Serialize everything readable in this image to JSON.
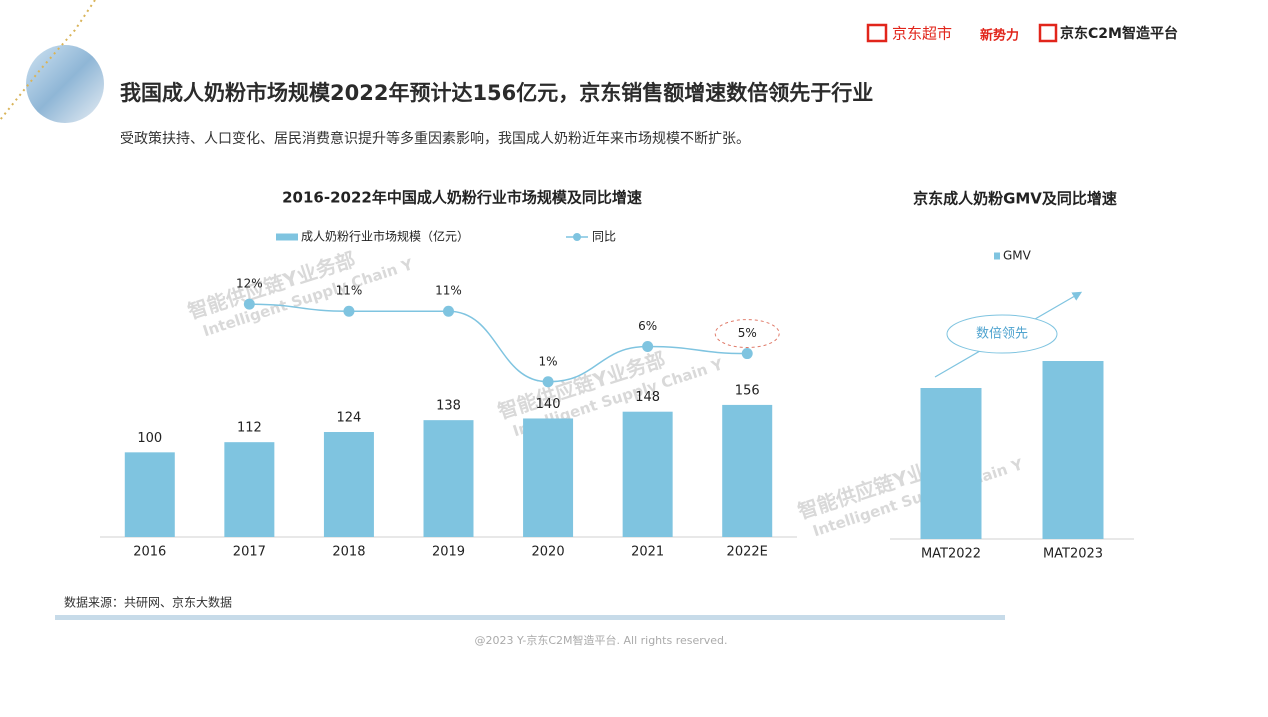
{
  "header": {
    "title": "我国成人奶粉市场规模2022年预计达156亿元，京东销售额增速数倍领先于行业",
    "subtitle": "受政策扶持、人口变化、居民消费意识提升等多重因素影响，我国成人奶粉近年来市场规模不断扩张。",
    "logos": [
      "京东超市",
      "新势力",
      "京东C2M智造平台"
    ]
  },
  "watermark": [
    "智能供应链Y业务部",
    "Intelligent Supply Chain Y"
  ],
  "chart_data": [
    {
      "type": "bar",
      "title": "2016-2022年中国成人奶粉行业市场规模及同比增速",
      "categories": [
        "2016",
        "2017",
        "2018",
        "2019",
        "2020",
        "2021",
        "2022E"
      ],
      "series": [
        {
          "name": "成人奶粉行业市场规模（亿元）",
          "color": "#7fc4e0",
          "values": [
            100,
            112,
            124,
            138,
            140,
            148,
            156
          ]
        },
        {
          "name": "同比",
          "type": "line",
          "axis": "y2",
          "color": "#7fc4e0",
          "values": [
            null,
            12,
            11,
            11,
            1,
            6,
            5
          ],
          "value_labels": [
            null,
            "12%",
            "11%",
            "11%",
            "1%",
            "6%",
            "5%"
          ]
        }
      ],
      "ylim": [
        0,
        300
      ],
      "y2lim": [
        -21,
        15
      ],
      "legend": "top"
    },
    {
      "type": "bar",
      "title": "京东成人奶粉GMV及同比增速",
      "categories": [
        "MAT2022",
        "MAT2023"
      ],
      "series": [
        {
          "name": "GMV",
          "color": "#7fc4e0",
          "values": [
            151,
            178
          ]
        }
      ],
      "ylim": [
        0,
        200
      ],
      "annotation": "数倍领先",
      "legend": "top"
    }
  ],
  "source": "数据来源：共研网、京东大数据",
  "footer": "@2023 Y-京东C2M智造平台. All rights reserved."
}
